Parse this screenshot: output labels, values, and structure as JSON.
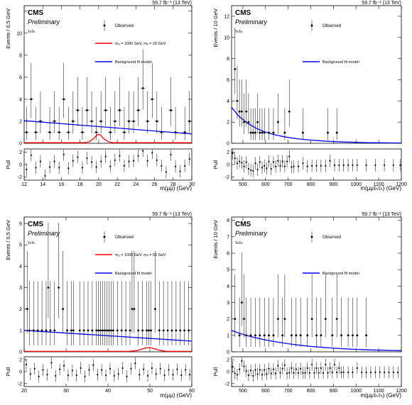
{
  "colors": {
    "signal": "#ff0000",
    "background": "#0000ff",
    "observed": "#000000"
  },
  "common": {
    "cms": "CMS",
    "preliminary": "Preliminary",
    "lumi": "59.7 fb⁻¹ (13 TeV)",
    "legend_observed": "Observed",
    "legend_background": "Background fit model",
    "pull_label": "Pull"
  },
  "chart_data": [
    {
      "type": "scatter",
      "panel": "top-left",
      "channel": "τₕτₕ",
      "ylabel": "Events / 0.5 GeV",
      "xlabel": "m(μμ) (GeV)",
      "signal_label": "mᵤ = 1000 GeV, mᵥ = 20 GeV",
      "xlim": [
        12,
        30
      ],
      "ylim": [
        0,
        12.5
      ],
      "pull_ylim": [
        -2.5,
        2.5
      ],
      "xticks": [
        12,
        14,
        16,
        18,
        20,
        22,
        24,
        26,
        28,
        30
      ],
      "xtick_labels": [
        "12",
        "14",
        "16",
        "18",
        "20",
        "22",
        "24",
        "26",
        "28",
        "30"
      ],
      "yticks": [
        0,
        2,
        4,
        6,
        8,
        10,
        12
      ],
      "ytick_labels": [
        "0",
        "2",
        "4",
        "6",
        "8",
        "10",
        ""
      ],
      "pull_yticks": [
        -2,
        0,
        2
      ],
      "pull_ytick_labels": [
        "-2",
        "0",
        "2"
      ],
      "bin_width": 0.5,
      "observed_x": [
        12.25,
        12.75,
        13.25,
        13.75,
        14.75,
        15.25,
        15.75,
        16.25,
        16.75,
        17.25,
        17.75,
        18.25,
        18.75,
        19.25,
        19.75,
        20.25,
        20.75,
        21.25,
        21.75,
        22.25,
        22.75,
        23.25,
        23.75,
        24.25,
        24.75,
        25.25,
        25.75,
        26.25,
        26.75,
        27.75,
        28.25,
        29.25,
        29.75
      ],
      "observed_y": [
        1,
        4,
        1,
        2,
        1,
        2,
        1,
        4,
        1,
        2,
        3,
        1,
        3,
        2,
        1,
        2,
        3,
        1,
        2,
        3,
        1,
        2,
        2,
        3,
        5,
        2,
        4,
        2,
        1,
        3,
        1,
        1,
        2
      ],
      "background_fit": {
        "x": [
          12,
          30
        ],
        "y": [
          2.05,
          0.85
        ]
      },
      "signal": {
        "x": [
          12,
          18.5,
          19,
          19.5,
          19.8,
          20,
          20.2,
          20.5,
          21,
          21.5,
          30
        ],
        "y": [
          0.05,
          0.05,
          0.15,
          0.45,
          0.75,
          0.8,
          0.75,
          0.45,
          0.15,
          0.05,
          0.05
        ]
      },
      "pull_x": [
        12.25,
        12.75,
        13.25,
        13.75,
        14.25,
        14.75,
        15.25,
        15.75,
        16.25,
        16.75,
        17.25,
        17.75,
        18.25,
        18.75,
        19.25,
        19.75,
        20.25,
        20.75,
        21.25,
        21.75,
        22.25,
        22.75,
        23.25,
        23.75,
        24.25,
        24.75,
        25.25,
        25.75,
        26.25,
        26.75,
        27.25,
        27.75,
        28.25,
        28.75,
        29.25,
        29.75
      ],
      "pull_y": [
        -0.8,
        1.5,
        -0.5,
        0.5,
        -1.8,
        -0.4,
        0.5,
        -0.5,
        1.6,
        -0.6,
        0.6,
        1.2,
        -0.5,
        1.0,
        0.4,
        -0.4,
        0.5,
        1.3,
        -0.3,
        0.7,
        1.4,
        -0.2,
        0.5,
        0.6,
        1.4,
        2.2,
        0.6,
        1.9,
        0.7,
        -0.2,
        -1.2,
        1.6,
        -0.3,
        -1.1,
        -0.2,
        0.9
      ]
    },
    {
      "type": "scatter",
      "panel": "top-right",
      "channel": "τₕτₕ",
      "ylabel": "Events / 10 GeV",
      "xlabel": "m(μμτₕτₕ) (GeV)",
      "xlim": [
        450,
        1200
      ],
      "ylim": [
        0,
        13
      ],
      "pull_ylim": [
        -2.5,
        2.5
      ],
      "xticks": [
        500,
        600,
        700,
        800,
        900,
        1000,
        1100,
        1200
      ],
      "xtick_labels": [
        "500",
        "600",
        "700",
        "800",
        "900",
        "1000",
        "1100",
        "1200"
      ],
      "yticks": [
        0,
        2,
        4,
        6,
        8,
        10,
        12
      ],
      "ytick_labels": [
        "0",
        "2",
        "4",
        "6",
        "8",
        "10",
        "12"
      ],
      "pull_yticks": [
        -2,
        0,
        2
      ],
      "pull_ytick_labels": [
        "-2",
        "0",
        "2"
      ],
      "bin_width": 10,
      "observed_x": [
        465,
        475,
        485,
        495,
        505,
        515,
        525,
        535,
        545,
        555,
        565,
        575,
        585,
        595,
        615,
        635,
        655,
        685,
        705,
        765,
        875,
        915
      ],
      "observed_y": [
        7,
        4,
        3,
        3,
        2,
        3,
        2,
        1,
        1,
        1,
        2,
        1,
        1,
        1,
        1,
        1,
        2,
        1,
        3,
        1,
        1,
        1
      ],
      "background_fit": {
        "x": [
          450,
          480,
          520,
          560,
          600,
          650,
          700,
          750,
          800,
          850,
          900,
          950,
          1000,
          1050,
          1100,
          1200
        ],
        "y": [
          3.4,
          2.6,
          1.9,
          1.4,
          1.05,
          0.75,
          0.55,
          0.4,
          0.3,
          0.22,
          0.16,
          0.12,
          0.09,
          0.06,
          0.045,
          0.03
        ]
      },
      "pull_x": [
        455,
        465,
        475,
        485,
        495,
        505,
        515,
        525,
        535,
        545,
        555,
        565,
        575,
        585,
        595,
        605,
        615,
        625,
        635,
        645,
        655,
        665,
        675,
        685,
        695,
        705,
        715,
        725,
        745,
        765,
        785,
        805,
        825,
        845,
        865,
        885,
        905,
        925,
        945,
        965,
        985,
        1005,
        1045,
        1085,
        1125,
        1165,
        1195
      ],
      "pull_y": [
        1.8,
        1.0,
        0.2,
        0.5,
        0.3,
        -0.3,
        0.4,
        -0.7,
        -0.9,
        -1.0,
        0.2,
        -0.8,
        0.4,
        -0.5,
        -0.2,
        -0.6,
        0.5,
        -0.7,
        0.4,
        -0.3,
        0.6,
        -0.2,
        0.5,
        -0.3,
        0.5,
        1.3,
        -0.4,
        -0.3,
        -0.3,
        0.2,
        -0.3,
        -0.2,
        -0.2,
        -0.2,
        -0.2,
        0.6,
        -0.1,
        -0.1,
        -0.1,
        -0.1,
        -0.1,
        -0.1,
        -0.1,
        -0.1,
        -0.1,
        -0.1,
        -0.1
      ]
    },
    {
      "type": "scatter",
      "panel": "bottom-left",
      "channel": "τₕτₕ",
      "ylabel": "Events / 0.5 GeV",
      "xlabel": "m(μμ) (GeV)",
      "signal_label": "mᵤ = 1000 GeV, mᵥ = 50 GeV",
      "xlim": [
        20,
        60
      ],
      "ylim": [
        0,
        6.3
      ],
      "pull_ylim": [
        -2.5,
        2.5
      ],
      "xticks": [
        20,
        30,
        40,
        50,
        60
      ],
      "xtick_labels": [
        "20",
        "30",
        "40",
        "50",
        "60"
      ],
      "yticks": [
        0,
        1,
        2,
        3,
        4,
        5,
        6
      ],
      "ytick_labels": [
        "0",
        "1",
        "2",
        "3",
        "4",
        "5",
        "6"
      ],
      "pull_yticks": [
        -2,
        0,
        2
      ],
      "pull_ytick_labels": [
        "-2",
        "0",
        "2"
      ],
      "bin_width": 0.5,
      "observed_x": [
        20.75,
        21.25,
        22.25,
        23.25,
        24.25,
        25.25,
        25.75,
        26.25,
        27.25,
        28.25,
        29.25,
        30.25,
        31.25,
        31.75,
        33.25,
        34.25,
        35.25,
        36.25,
        37.25,
        37.75,
        38.25,
        38.75,
        39.25,
        39.75,
        40.25,
        40.75,
        41.25,
        42.25,
        43.25,
        44.25,
        45.25,
        45.75,
        46.25,
        47.25,
        48.25,
        49.25,
        49.75,
        50.25,
        51.25,
        52.25,
        53.25,
        54.25,
        55.25,
        56.25,
        57.25,
        58.25,
        59.25
      ],
      "observed_y": [
        2,
        1,
        1,
        1,
        1,
        1,
        3,
        1,
        1,
        3,
        2,
        1,
        1,
        1,
        1,
        1,
        1,
        1,
        1,
        1,
        1,
        1,
        1,
        1,
        1,
        1,
        1,
        1,
        1,
        1,
        1,
        2,
        2,
        1,
        1,
        1,
        1,
        1,
        2,
        1,
        1,
        1,
        1,
        1,
        1,
        1,
        1
      ],
      "background_fit": {
        "x": [
          20,
          60
        ],
        "y": [
          1.0,
          0.5
        ]
      },
      "signal": {
        "x": [
          20,
          45,
          47,
          48,
          49,
          49.8,
          50.5,
          51.5,
          52.5,
          54,
          60
        ],
        "y": [
          0.02,
          0.02,
          0.06,
          0.12,
          0.18,
          0.2,
          0.18,
          0.12,
          0.06,
          0.02,
          0.02
        ]
      },
      "pull_x": [
        20.5,
        21.5,
        22.5,
        23.5,
        24.5,
        25.5,
        26.5,
        27.5,
        28.5,
        29.5,
        30.5,
        31.5,
        32.5,
        33.5,
        34.5,
        35.5,
        36.5,
        37.5,
        38.5,
        39.5,
        40.5,
        41.5,
        42.5,
        43.5,
        44.5,
        45.5,
        46.5,
        47.5,
        48.5,
        49.5,
        50.5,
        51.5,
        52.5,
        53.5,
        54.5,
        55.5,
        56.5,
        57.5,
        58.5,
        59.5
      ],
      "pull_y": [
        1.2,
        -0.4,
        0.5,
        -0.8,
        0.3,
        -0.5,
        1.5,
        -0.7,
        0.4,
        1.0,
        -0.6,
        0.2,
        -0.6,
        0.6,
        -0.8,
        0.3,
        1.1,
        -0.5,
        0.3,
        -0.6,
        0.5,
        -0.7,
        -0.4,
        0.6,
        -0.8,
        0.5,
        1.4,
        -0.5,
        0.4,
        -0.7,
        0.6,
        -0.4,
        0.5,
        -0.6,
        0.3,
        -0.5,
        0.4,
        -0.6,
        0.3,
        -0.5
      ]
    },
    {
      "type": "scatter",
      "panel": "bottom-right",
      "channel": "τₕτₕ",
      "ylabel": "Events / 10 GeV",
      "xlabel": "m(μμτₕτₕ) (GeV)",
      "xlim": [
        450,
        1200
      ],
      "ylim": [
        0,
        8.2
      ],
      "pull_ylim": [
        -2.5,
        2.5
      ],
      "xticks": [
        500,
        600,
        700,
        800,
        900,
        1000,
        1100,
        1200
      ],
      "xtick_labels": [
        "500",
        "600",
        "700",
        "800",
        "900",
        "1000",
        "1100",
        "1200"
      ],
      "yticks": [
        0,
        1,
        2,
        3,
        4,
        5,
        6,
        7,
        8
      ],
      "ytick_labels": [
        "0",
        "1",
        "2",
        "3",
        "4",
        "5",
        "6",
        "7",
        "8"
      ],
      "pull_yticks": [
        -2,
        0,
        2
      ],
      "pull_ytick_labels": [
        "-2",
        "0",
        "2"
      ],
      "bin_width": 10,
      "observed_x": [
        465,
        485,
        495,
        505,
        515,
        535,
        555,
        575,
        595,
        615,
        635,
        655,
        675,
        685,
        715,
        735,
        755,
        785,
        805,
        825,
        845,
        865,
        895,
        915,
        935,
        965,
        985,
        1005,
        1045
      ],
      "observed_y": [
        2,
        1,
        3,
        2,
        1,
        1,
        1,
        1,
        1,
        1,
        1,
        2,
        1,
        2,
        1,
        1,
        1,
        1,
        2,
        1,
        1,
        2,
        1,
        2,
        1,
        1,
        1,
        1,
        1
      ],
      "background_fit": {
        "x": [
          450,
          480,
          520,
          560,
          600,
          650,
          700,
          750,
          800,
          850,
          900,
          950,
          1000,
          1050,
          1100,
          1200
        ],
        "y": [
          1.3,
          1.15,
          0.98,
          0.84,
          0.72,
          0.6,
          0.49,
          0.4,
          0.33,
          0.27,
          0.22,
          0.18,
          0.15,
          0.12,
          0.1,
          0.07
        ]
      },
      "pull_x": [
        455,
        465,
        475,
        485,
        495,
        505,
        515,
        525,
        535,
        545,
        555,
        565,
        575,
        585,
        595,
        605,
        615,
        625,
        635,
        645,
        655,
        665,
        675,
        685,
        695,
        705,
        715,
        725,
        735,
        745,
        755,
        765,
        775,
        785,
        795,
        805,
        815,
        825,
        835,
        845,
        855,
        865,
        875,
        885,
        895,
        905,
        915,
        925,
        935,
        945,
        965,
        985,
        1005,
        1025,
        1045,
        1065,
        1085,
        1105,
        1125,
        1145,
        1165,
        1185
      ],
      "pull_y": [
        0.8,
        -0.3,
        -0.5,
        0.4,
        1.8,
        0.9,
        0.1,
        -0.6,
        0.2,
        -0.7,
        0.3,
        -0.4,
        0.3,
        -0.5,
        0.3,
        -0.4,
        0.5,
        -0.3,
        0.4,
        -0.3,
        1.0,
        -0.2,
        0.5,
        1.1,
        -0.3,
        -0.2,
        0.6,
        -0.2,
        0.4,
        -0.2,
        0.5,
        -0.2,
        -0.2,
        0.6,
        -0.2,
        1.2,
        -0.2,
        0.6,
        -0.2,
        0.6,
        -0.2,
        1.2,
        -0.2,
        0.6,
        -0.1,
        1.2,
        -0.1,
        0.6,
        -0.1,
        -0.1,
        -0.1,
        -0.1,
        0.6,
        -0.1,
        -0.1,
        -0.1,
        -0.1,
        -0.1,
        -0.1,
        -0.1,
        -0.1,
        -0.1
      ]
    }
  ]
}
